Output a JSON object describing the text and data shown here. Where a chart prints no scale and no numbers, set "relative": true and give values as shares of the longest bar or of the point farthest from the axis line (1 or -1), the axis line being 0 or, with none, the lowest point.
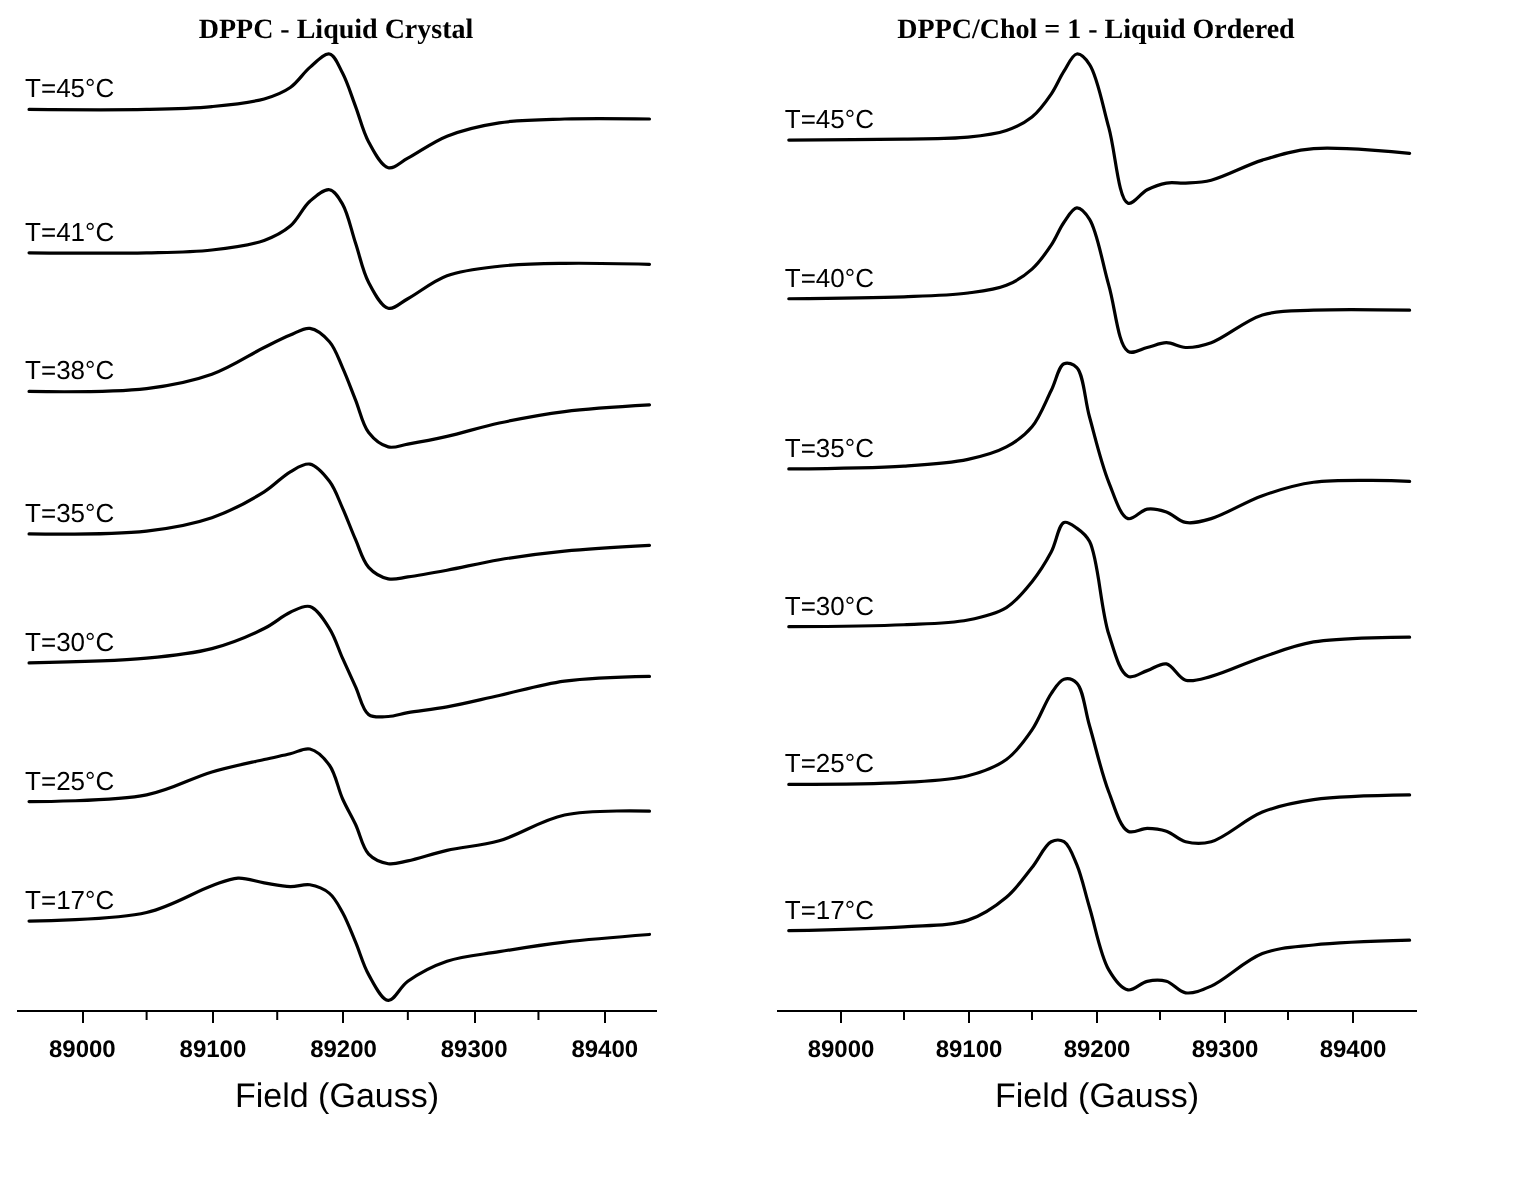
{
  "chart_data": [
    {
      "type": "line",
      "title": "DPPC - Liquid Crystal",
      "xlabel": "Field (Gauss)",
      "relative": true,
      "xlim": [
        88950,
        89440
      ],
      "xticks": [
        89000,
        {
          "value": 89050,
          "label": null
        },
        89100,
        {
          "value": 89150,
          "label": null
        },
        89200,
        {
          "value": 89250,
          "label": null
        },
        89300,
        {
          "value": 89350,
          "label": null
        },
        89400
      ],
      "x": [
        88960,
        89050,
        89100,
        89140,
        89160,
        89175,
        89190,
        89200,
        89210,
        89220,
        89235,
        89250,
        89280,
        89320,
        89370,
        89435
      ],
      "series": [
        {
          "name": "T=45°C",
          "color": "#000000",
          "values": [
            0.942,
            0.942,
            0.945,
            0.953,
            0.965,
            0.986,
            1.0,
            0.98,
            0.945,
            0.908,
            0.881,
            0.891,
            0.914,
            0.928,
            0.932,
            0.932
          ]
        },
        {
          "name": "T=41°C",
          "color": "#000000",
          "values": [
            0.792,
            0.792,
            0.795,
            0.805,
            0.82,
            0.846,
            0.858,
            0.843,
            0.802,
            0.761,
            0.734,
            0.744,
            0.768,
            0.778,
            0.781,
            0.78
          ]
        },
        {
          "name": "T=38°C",
          "color": "#000000",
          "values": [
            0.647,
            0.65,
            0.665,
            0.693,
            0.706,
            0.713,
            0.699,
            0.672,
            0.638,
            0.604,
            0.589,
            0.592,
            0.6,
            0.614,
            0.626,
            0.633
          ]
        },
        {
          "name": "T=35°C",
          "color": "#000000",
          "values": [
            0.498,
            0.501,
            0.515,
            0.542,
            0.563,
            0.571,
            0.553,
            0.525,
            0.492,
            0.463,
            0.451,
            0.453,
            0.46,
            0.471,
            0.48,
            0.486
          ]
        },
        {
          "name": "T=30°C",
          "color": "#000000",
          "values": [
            0.363,
            0.368,
            0.378,
            0.399,
            0.416,
            0.422,
            0.399,
            0.368,
            0.338,
            0.309,
            0.307,
            0.311,
            0.317,
            0.329,
            0.344,
            0.349
          ]
        },
        {
          "name": "T=25°C",
          "color": "#000000",
          "values": [
            0.218,
            0.225,
            0.249,
            0.262,
            0.268,
            0.273,
            0.256,
            0.221,
            0.194,
            0.163,
            0.153,
            0.156,
            0.167,
            0.177,
            0.204,
            0.208
          ]
        },
        {
          "name": "T=17°C",
          "color": "#000000",
          "x": [
            88960,
            89050,
            89100,
            89120,
            89140,
            89160,
            89175,
            89190,
            89200,
            89210,
            89220,
            89235,
            89250,
            89280,
            89320,
            89370,
            89435
          ],
          "values": [
            0.093,
            0.102,
            0.13,
            0.138,
            0.133,
            0.129,
            0.131,
            0.122,
            0.102,
            0.071,
            0.037,
            0.01,
            0.03,
            0.051,
            0.061,
            0.071,
            0.079
          ]
        }
      ]
    },
    {
      "type": "line",
      "title": "DPPC/Chol = 1 - Liquid Ordered",
      "xlabel": "Field (Gauss)",
      "relative": true,
      "xlim": [
        88950,
        89450
      ],
      "xticks": [
        89000,
        {
          "value": 89050,
          "label": null
        },
        89100,
        {
          "value": 89150,
          "label": null
        },
        89200,
        {
          "value": 89250,
          "label": null
        },
        89300,
        {
          "value": 89350,
          "label": null
        },
        89400
      ],
      "x": [
        88960,
        89050,
        89100,
        89130,
        89150,
        89165,
        89175,
        89185,
        89195,
        89210,
        89225,
        89240,
        89255,
        89270,
        89290,
        89330,
        89370,
        89445
      ],
      "series": [
        {
          "name": "T=45°C",
          "color": "#000000",
          "values": [
            0.91,
            0.911,
            0.913,
            0.92,
            0.934,
            0.958,
            0.982,
            1.0,
            0.989,
            0.923,
            0.844,
            0.858,
            0.865,
            0.865,
            0.868,
            0.889,
            0.901,
            0.896
          ]
        },
        {
          "name": "T=40°C",
          "color": "#000000",
          "values": [
            0.744,
            0.746,
            0.75,
            0.758,
            0.775,
            0.8,
            0.824,
            0.839,
            0.827,
            0.758,
            0.689,
            0.693,
            0.698,
            0.693,
            0.698,
            0.727,
            0.732,
            0.732
          ]
        },
        {
          "name": "T=35°C",
          "color": "#000000",
          "values": [
            0.566,
            0.569,
            0.576,
            0.589,
            0.61,
            0.648,
            0.676,
            0.672,
            0.62,
            0.552,
            0.514,
            0.524,
            0.521,
            0.51,
            0.514,
            0.538,
            0.552,
            0.553
          ]
        },
        {
          "name": "T=30°C",
          "color": "#000000",
          "values": [
            0.401,
            0.403,
            0.408,
            0.421,
            0.448,
            0.479,
            0.51,
            0.504,
            0.49,
            0.393,
            0.349,
            0.355,
            0.362,
            0.345,
            0.349,
            0.369,
            0.385,
            0.39
          ]
        },
        {
          "name": "T=25°C",
          "color": "#000000",
          "values": [
            0.236,
            0.238,
            0.245,
            0.262,
            0.293,
            0.331,
            0.346,
            0.342,
            0.297,
            0.228,
            0.187,
            0.19,
            0.187,
            0.176,
            0.176,
            0.207,
            0.22,
            0.225
          ]
        },
        {
          "name": "T=17°C",
          "color": "#000000",
          "values": [
            0.083,
            0.087,
            0.094,
            0.118,
            0.149,
            0.176,
            0.176,
            0.152,
            0.107,
            0.042,
            0.021,
            0.03,
            0.03,
            0.018,
            0.025,
            0.059,
            0.068,
            0.073
          ]
        }
      ]
    }
  ]
}
